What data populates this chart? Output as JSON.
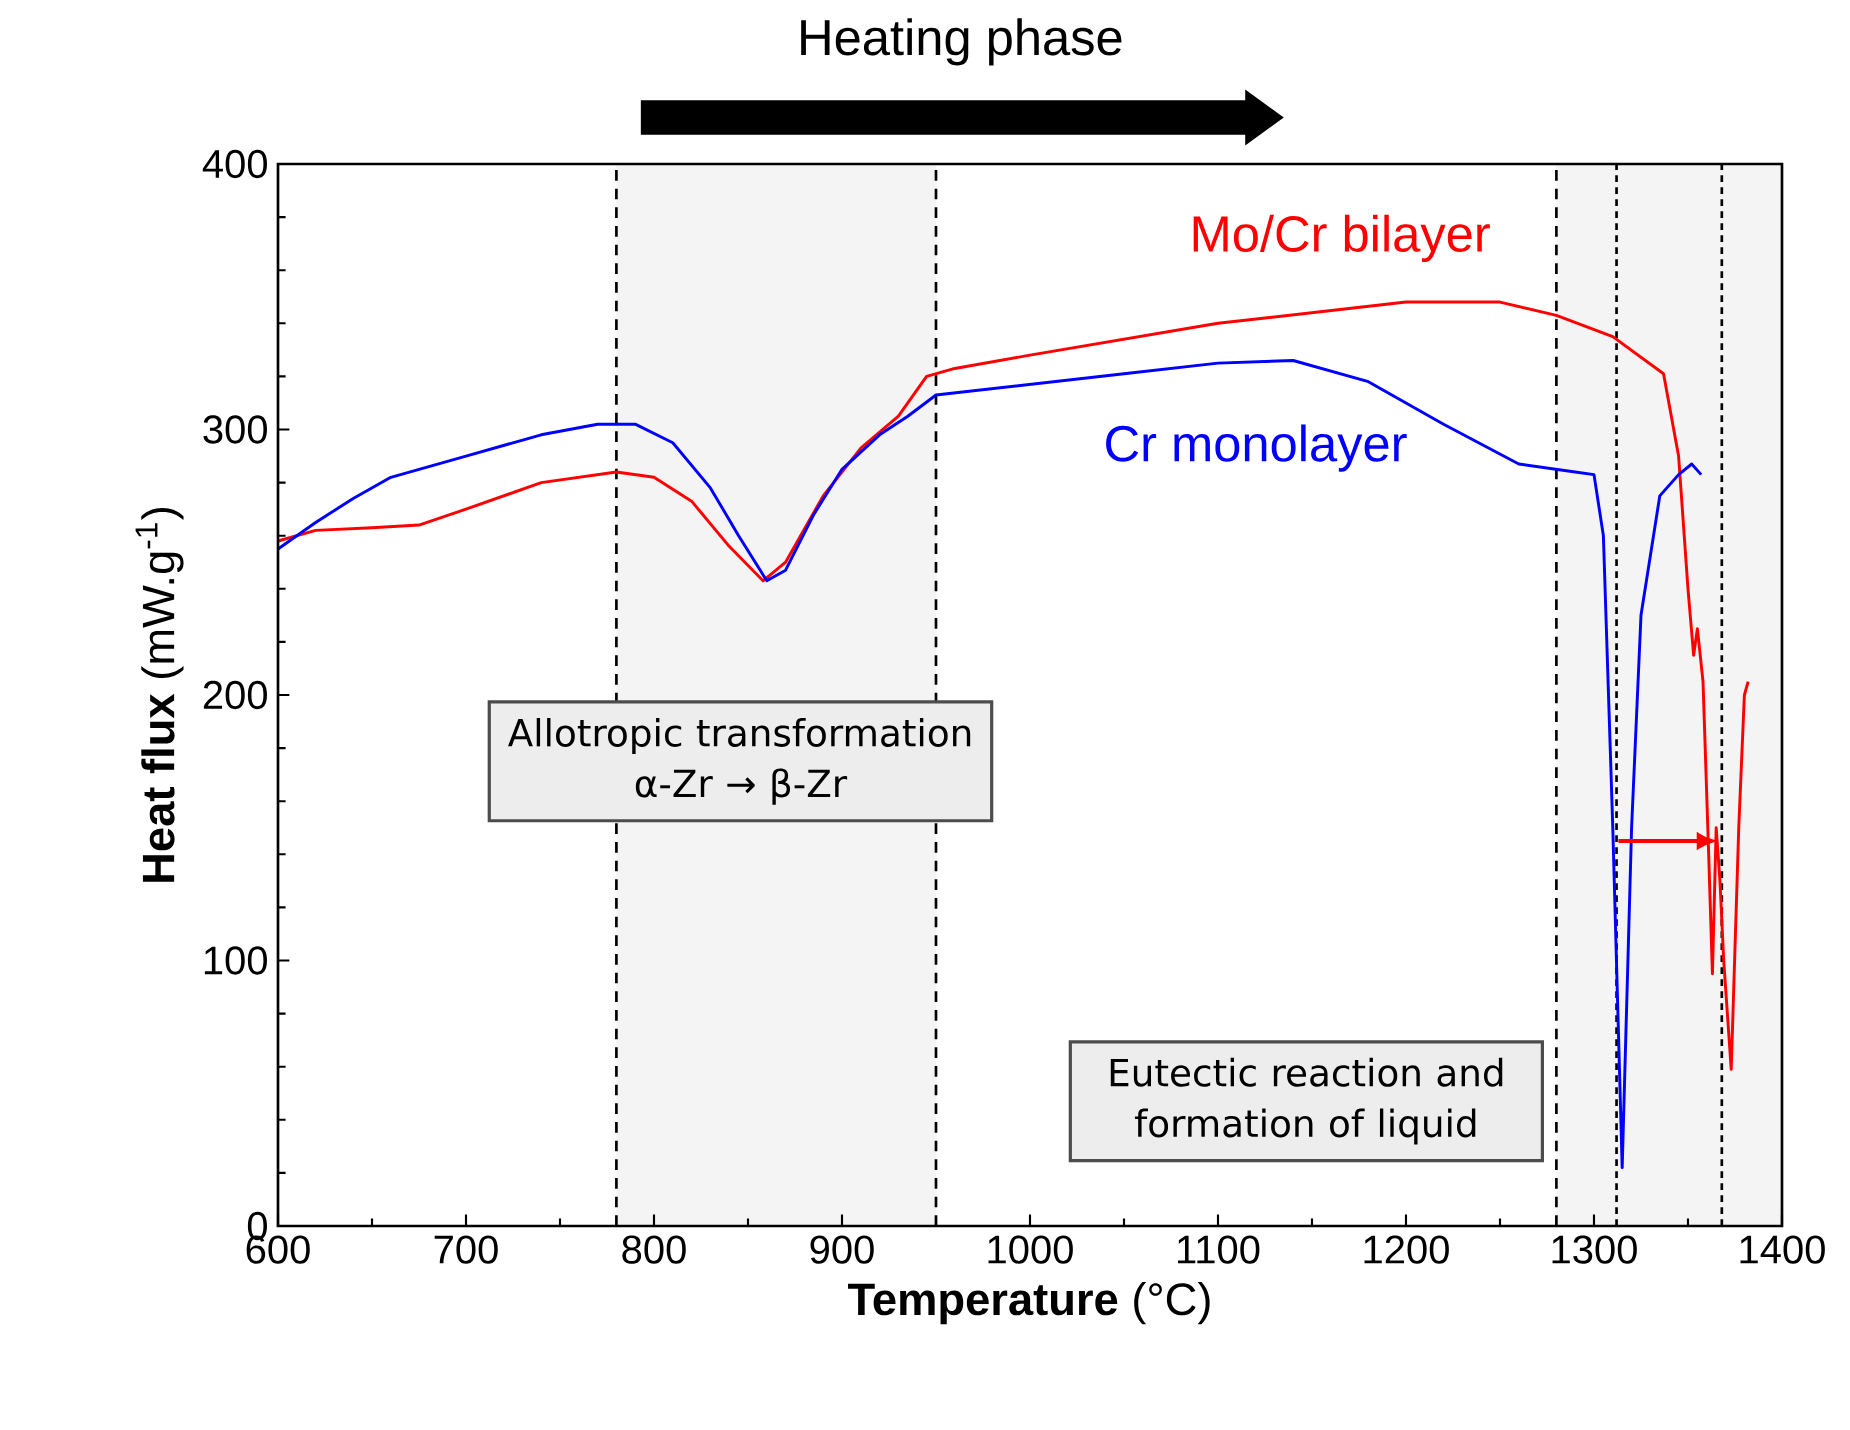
{
  "chart_data": {
    "type": "line",
    "xlabel": "**Temperature** (°C)",
    "ylabel": "**Heat flux** (mW.g$^{-1}$)",
    "xlim": [
      600,
      1400
    ],
    "xticks": [
      600,
      700,
      800,
      900,
      1000,
      1100,
      1200,
      1300,
      1400
    ],
    "ylim": [
      0,
      400
    ],
    "yticks": [
      0,
      100,
      200,
      300,
      400
    ],
    "grid": false,
    "legend": false,
    "marker": "none",
    "line_style": "solid",
    "series": [
      {
        "name": "Mo/Cr bilayer",
        "color": "#ff0000",
        "x": [
          600,
          620,
          650,
          675,
          700,
          740,
          780,
          800,
          820,
          840,
          858,
          870,
          890,
          910,
          930,
          945,
          960,
          1000,
          1100,
          1200,
          1250,
          1280,
          1310,
          1337,
          1345,
          1350,
          1353,
          1355,
          1358,
          1361,
          1363,
          1365,
          1367,
          1369,
          1373,
          1377,
          1380,
          1382
        ],
        "values": [
          258,
          262,
          263,
          264,
          270,
          280,
          284,
          282,
          273,
          256,
          243,
          250,
          275,
          293,
          305,
          320,
          323,
          328,
          340,
          348,
          348,
          343,
          335,
          321,
          290,
          240,
          215,
          225,
          205,
          140,
          95,
          150,
          130,
          100,
          59,
          150,
          200,
          205
        ]
      },
      {
        "name": "Cr monolayer",
        "color": "#0000ff",
        "x": [
          600,
          620,
          640,
          660,
          700,
          740,
          770,
          790,
          810,
          830,
          845,
          860,
          870,
          885,
          900,
          920,
          935,
          950,
          1000,
          1050,
          1100,
          1140,
          1180,
          1220,
          1260,
          1290,
          1300,
          1305,
          1310,
          1315,
          1320,
          1325,
          1335,
          1345,
          1352,
          1357
        ],
        "values": [
          255,
          265,
          274,
          282,
          290,
          298,
          302,
          302,
          295,
          278,
          260,
          243,
          247,
          268,
          285,
          298,
          305,
          313,
          317,
          321,
          325,
          326,
          318,
          302,
          287,
          284,
          283,
          260,
          150,
          22,
          150,
          230,
          275,
          283,
          287,
          283
        ]
      }
    ],
    "ref_lines": [
      {
        "axis": "x",
        "value": 780,
        "color": "#000000",
        "line_style": "dashed"
      },
      {
        "axis": "x",
        "value": 950,
        "color": "#000000",
        "line_style": "dashed"
      },
      {
        "axis": "x",
        "value": 1280,
        "color": "#000000",
        "line_style": "dashed"
      },
      {
        "axis": "x",
        "value": 1312,
        "color": "#000000",
        "line_style": "dotted"
      },
      {
        "axis": "x",
        "value": 1368,
        "color": "#000000",
        "line_style": "dotted"
      }
    ],
    "bands": [
      {
        "axis": "x",
        "from": 780,
        "to": 950,
        "color": "#f4f4f4"
      },
      {
        "axis": "x",
        "from": 1280,
        "to": 1400,
        "color": "#f4f4f4"
      }
    ],
    "annotations": [
      "Heating phase",
      "Allotropic transformation α-Zr → β-Zr",
      "Eutectic reaction and formation of liquid"
    ]
  }
}
